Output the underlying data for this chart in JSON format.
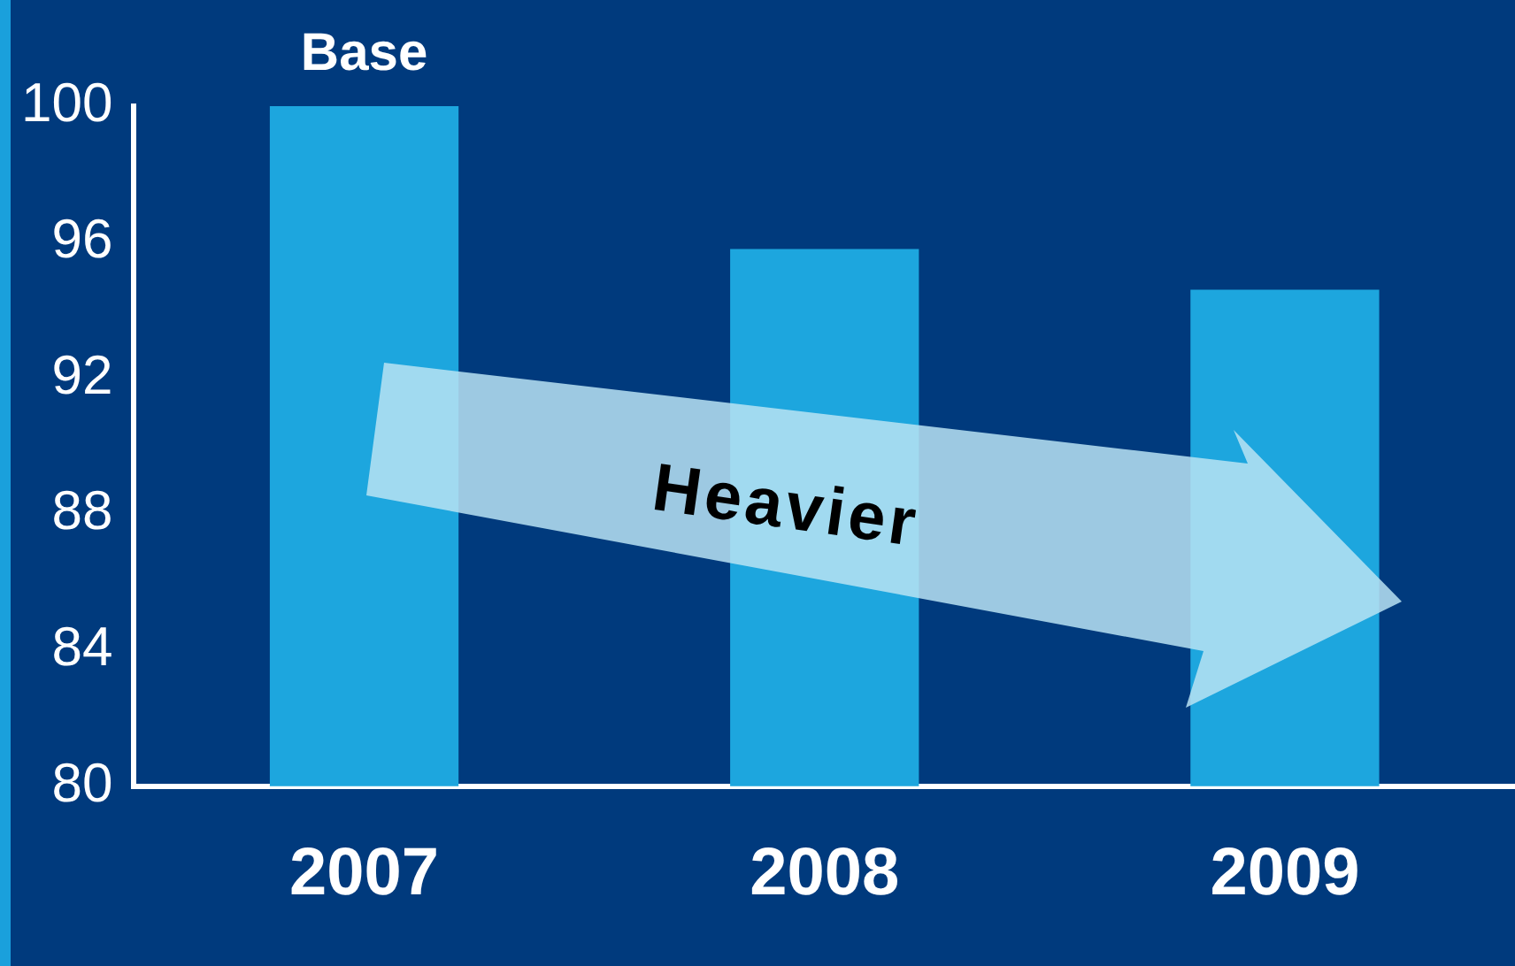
{
  "chart_data": {
    "type": "bar",
    "categories": [
      "2007",
      "2008",
      "2009"
    ],
    "values": [
      100,
      95.8,
      94.6
    ],
    "color": "#1da6de",
    "ylim": [
      80,
      100
    ],
    "yticks": [
      80,
      84,
      88,
      92,
      96,
      100
    ],
    "grid": false,
    "legend": false,
    "annotations": [
      {
        "text": "Base",
        "x": "2007",
        "y": 100
      },
      "Heavier"
    ]
  }
}
